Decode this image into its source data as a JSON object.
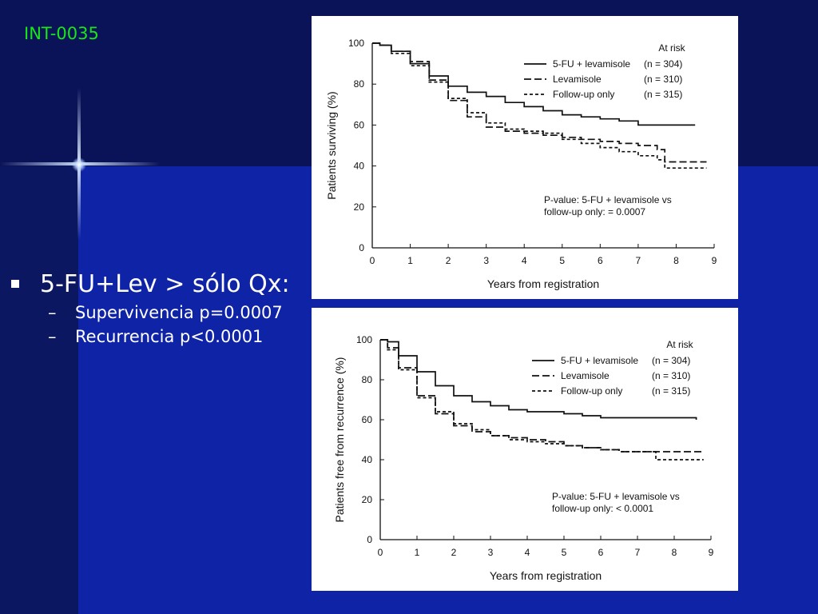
{
  "slide": {
    "id": "INT-0035",
    "bullet_main": "5-FU+Lev > sólo Qx:",
    "sub_bullets": [
      "Supervivencia p=0.0007",
      "Recurrencia p<0.0001"
    ],
    "dash": "–"
  },
  "colors": {
    "background": "#101f7a",
    "id_text": "#19e619",
    "text": "#ffffff",
    "curve": "#111111"
  },
  "chart_data": [
    {
      "type": "line",
      "xlabel": "Years from registration",
      "ylabel": "Patients surviving (%)",
      "xticks": [
        "0",
        "1",
        "2",
        "3",
        "4",
        "5",
        "6",
        "7",
        "8",
        "9"
      ],
      "yticks": [
        "0",
        "20",
        "40",
        "60",
        "80",
        "100"
      ],
      "xlim": [
        0,
        9
      ],
      "ylim": [
        0,
        100
      ],
      "legend_title": "At risk",
      "series": [
        {
          "name": "5-FU + levamisole",
          "n_label": "(n = 304)",
          "style": "solid",
          "x": [
            0,
            0.2,
            0.5,
            1,
            1.5,
            2,
            2.5,
            3,
            3.5,
            4,
            4.5,
            5,
            5.5,
            6,
            6.5,
            7,
            7.5,
            8,
            8.5
          ],
          "y": [
            100,
            99,
            96,
            90,
            84,
            79,
            76,
            74,
            71,
            69,
            67,
            65,
            64,
            63,
            62,
            60,
            60,
            60,
            60
          ]
        },
        {
          "name": "Levamisole",
          "n_label": "(n = 310)",
          "style": "dash",
          "x": [
            0,
            0.2,
            0.5,
            1,
            1.5,
            2,
            2.5,
            3,
            3.5,
            4,
            4.5,
            5,
            5.5,
            6,
            6.5,
            7,
            7.5,
            7.7,
            8,
            8.5,
            8.8
          ],
          "y": [
            100,
            99,
            96,
            91,
            82,
            72,
            64,
            59,
            57,
            56,
            55,
            54,
            53,
            52,
            51,
            50,
            48,
            42,
            42,
            42,
            42
          ]
        },
        {
          "name": "Follow-up only",
          "n_label": "(n = 315)",
          "style": "dot",
          "x": [
            0,
            0.2,
            0.5,
            1,
            1.5,
            2,
            2.5,
            3,
            3.5,
            4,
            4.5,
            5,
            5.5,
            6,
            6.5,
            7,
            7.5,
            7.7,
            8,
            8.5,
            8.8
          ],
          "y": [
            100,
            99,
            95,
            89,
            81,
            73,
            66,
            61,
            58,
            57,
            56,
            53,
            51,
            49,
            47,
            45,
            43,
            39,
            39,
            39,
            39
          ]
        }
      ],
      "annotation": [
        "P-value:  5-FU + levamisole vs",
        "follow-up only:  = 0.0007"
      ]
    },
    {
      "type": "line",
      "xlabel": "Years from registration",
      "ylabel": "Patients free from recurrence (%)",
      "xticks": [
        "0",
        "1",
        "2",
        "3",
        "4",
        "5",
        "6",
        "7",
        "8",
        "9"
      ],
      "yticks": [
        "0",
        "20",
        "40",
        "60",
        "80",
        "100"
      ],
      "xlim": [
        0,
        9
      ],
      "ylim": [
        0,
        100
      ],
      "legend_title": "At risk",
      "series": [
        {
          "name": "5-FU + levamisole",
          "n_label": "(n = 304)",
          "style": "solid",
          "x": [
            0,
            0.2,
            0.5,
            1,
            1.5,
            2,
            2.5,
            3,
            3.5,
            4,
            4.5,
            5,
            5.5,
            6,
            7,
            8,
            8.5,
            8.6
          ],
          "y": [
            100,
            99,
            92,
            84,
            77,
            72,
            69,
            67,
            65,
            64,
            64,
            63,
            62,
            61,
            61,
            61,
            61,
            60
          ]
        },
        {
          "name": "Levamisole",
          "n_label": "(n = 310)",
          "style": "dash",
          "x": [
            0,
            0.2,
            0.5,
            1,
            1.5,
            2,
            2.5,
            3,
            3.5,
            4,
            4.5,
            5,
            5.5,
            6,
            6.5,
            7,
            7.5,
            8,
            8.5,
            8.8
          ],
          "y": [
            100,
            96,
            86,
            72,
            63,
            57,
            54,
            52,
            51,
            50,
            49,
            47,
            46,
            45,
            44,
            44,
            44,
            44,
            44,
            44
          ]
        },
        {
          "name": "Follow-up only",
          "n_label": "(n = 315)",
          "style": "dot",
          "x": [
            0,
            0.2,
            0.5,
            1,
            1.5,
            2,
            2.5,
            3,
            3.5,
            4,
            4.5,
            5,
            5.5,
            6,
            6.5,
            7,
            7.3,
            7.5,
            8,
            8.5,
            8.8
          ],
          "y": [
            100,
            95,
            85,
            71,
            64,
            58,
            55,
            52,
            50,
            49,
            48,
            47,
            46,
            45,
            44,
            44,
            44,
            40,
            40,
            40,
            40
          ]
        }
      ],
      "annotation": [
        "P-value:  5-FU + levamisole vs",
        "follow-up only:   < 0.0001"
      ]
    }
  ]
}
